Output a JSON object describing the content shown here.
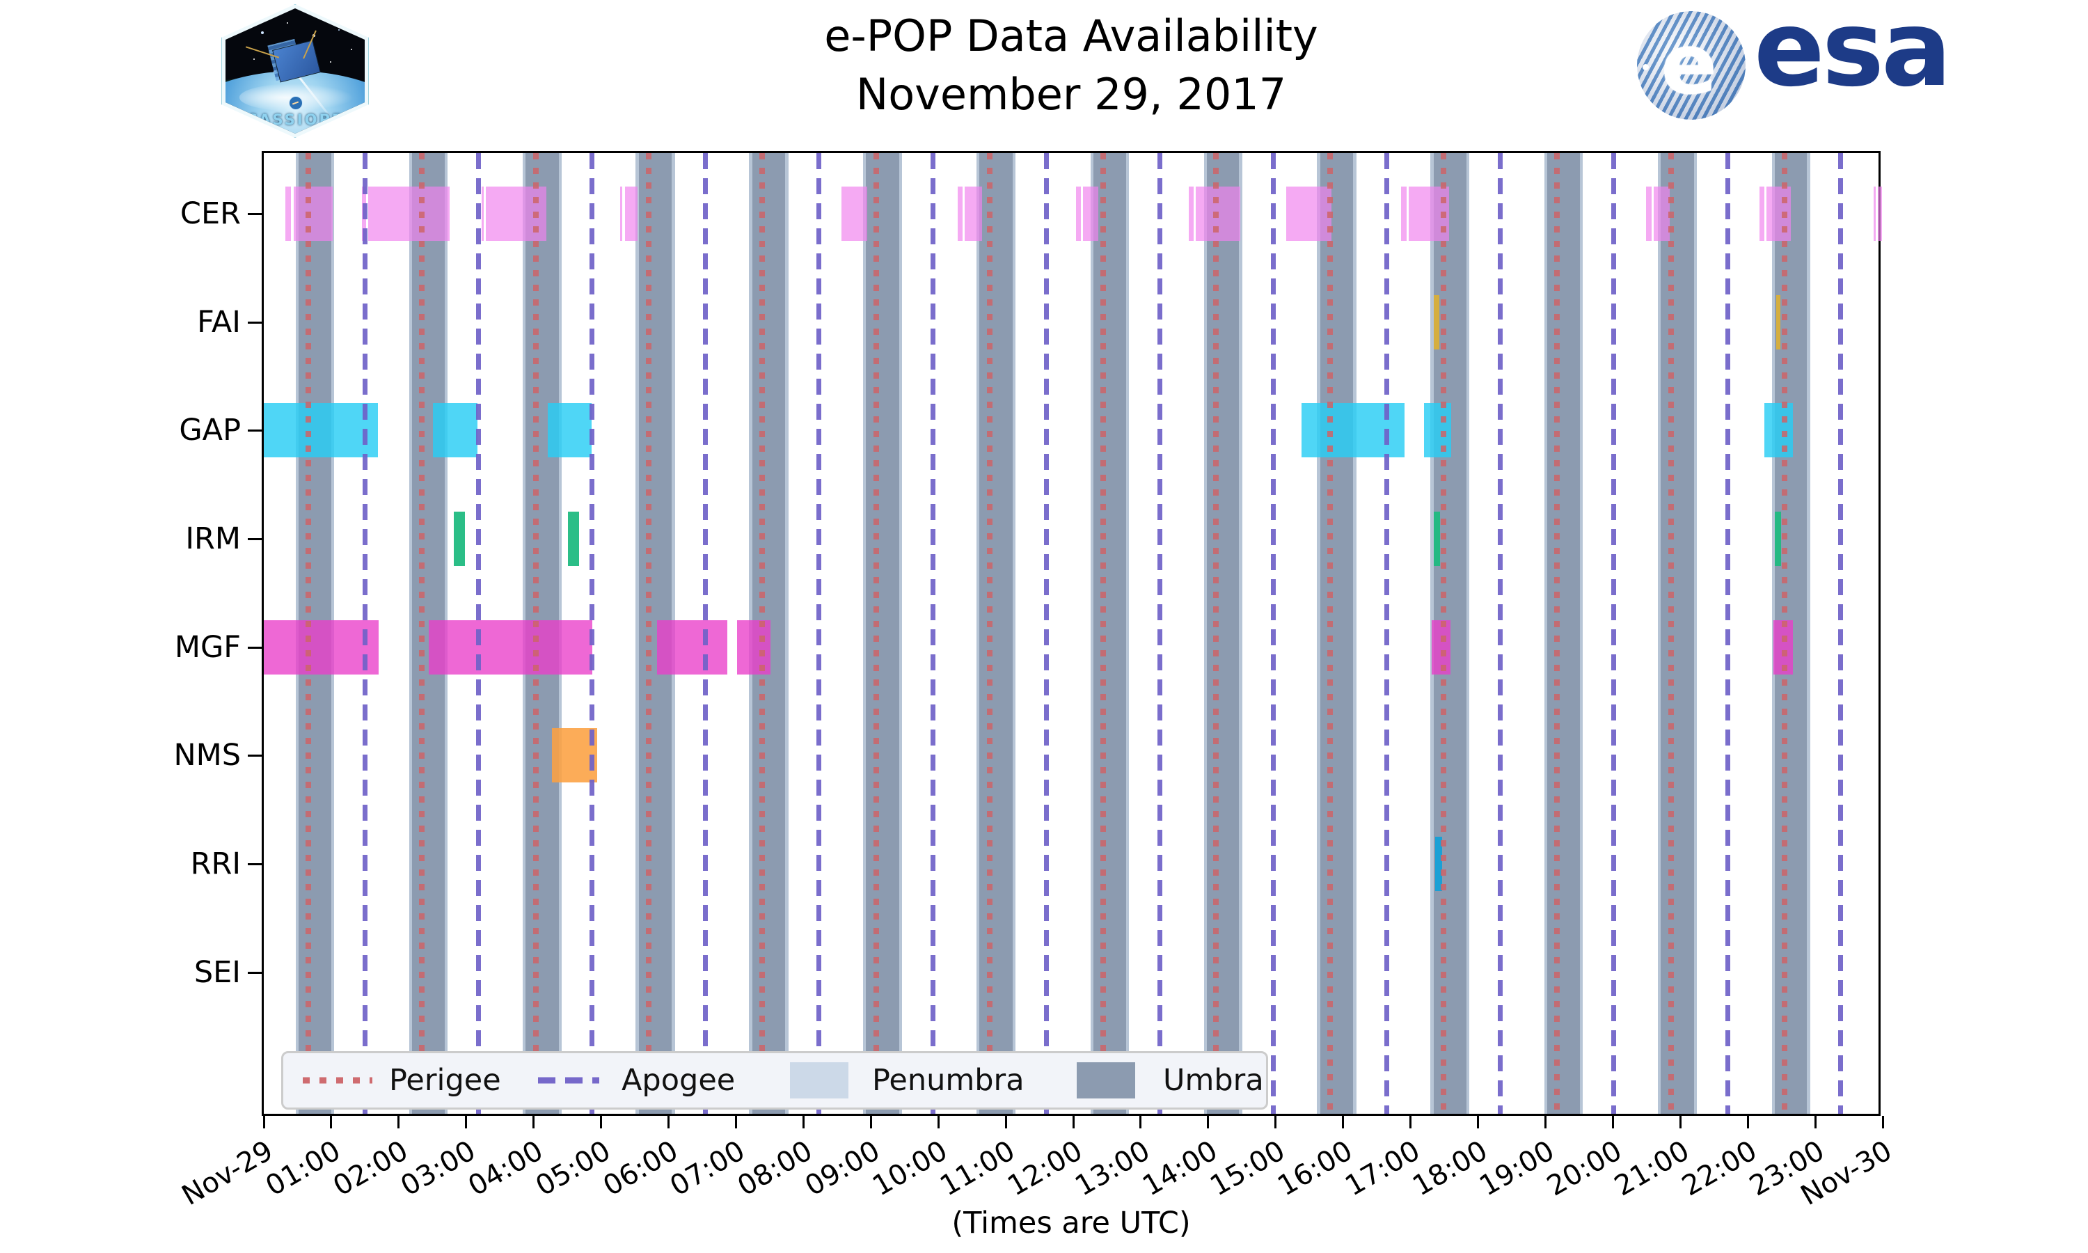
{
  "title": {
    "line1": "e-POP Data Availability",
    "line2": "November 29, 2017"
  },
  "branding": {
    "cassiope_label": "CASSIOPE",
    "esa_wordmark": "esa",
    "esa_globe_letter": "e"
  },
  "axis": {
    "x_axis_note": "(Times are UTC)"
  },
  "legend": {
    "items": [
      {
        "label": "Perigee",
        "swatch": "red-dotted-line"
      },
      {
        "label": "Apogee",
        "swatch": "purple-dashed-line"
      },
      {
        "label": "Penumbra",
        "swatch": "light-blue-patch",
        "color": "#ccd9e8"
      },
      {
        "label": "Umbra",
        "swatch": "slate-gray-patch",
        "color": "#8c9bb0"
      }
    ]
  },
  "chart_data": {
    "type": "broken-horizontal-bar availability timeline",
    "x_unit": "hours UTC on 2017-11-29",
    "x_range_hours": [
      0,
      24
    ],
    "x_tick_labels": [
      "Nov-29",
      "01:00",
      "02:00",
      "03:00",
      "04:00",
      "05:00",
      "06:00",
      "07:00",
      "08:00",
      "09:00",
      "10:00",
      "11:00",
      "12:00",
      "13:00",
      "14:00",
      "15:00",
      "16:00",
      "17:00",
      "18:00",
      "19:00",
      "20:00",
      "21:00",
      "22:00",
      "23:00",
      "Nov-30"
    ],
    "grid": false,
    "legend_position": "bottom-left inside axes",
    "colors": {
      "umbra": "#8c9bb0",
      "penumbra": "#b7c5d6",
      "perigee_line": "#cd6468",
      "apogee_line": "#6f61c8"
    },
    "orbit": {
      "perigee_hours": [
        0.66,
        2.34,
        4.03,
        5.71,
        7.39,
        9.08,
        10.76,
        12.44,
        14.12,
        15.81,
        17.49,
        19.17,
        20.86,
        22.54
      ],
      "apogee_hours": [
        1.5,
        3.18,
        4.87,
        6.55,
        8.23,
        9.92,
        11.6,
        13.28,
        14.97,
        16.65,
        18.33,
        20.01,
        21.7,
        23.38
      ],
      "umbra_intervals_hours": [
        [
          0.52,
          1.0
        ],
        [
          2.2,
          2.68
        ],
        [
          3.88,
          4.37
        ],
        [
          5.56,
          6.05
        ],
        [
          7.24,
          7.73
        ],
        [
          8.93,
          9.42
        ],
        [
          10.61,
          11.1
        ],
        [
          12.3,
          12.78
        ],
        [
          13.98,
          14.46
        ],
        [
          15.66,
          16.15
        ],
        [
          17.34,
          17.83
        ],
        [
          19.03,
          19.51
        ],
        [
          20.71,
          21.2
        ],
        [
          22.4,
          22.88
        ]
      ],
      "penumbra_width_hours": 0.045
    },
    "series": [
      {
        "name": "CER",
        "color": "rgba(240,130,238,0.68)",
        "intervals": [
          [
            0.32,
            0.4
          ],
          [
            0.44,
            1.02
          ],
          [
            1.46,
            1.52
          ],
          [
            1.55,
            2.76
          ],
          [
            3.23,
            3.26
          ],
          [
            3.29,
            4.19
          ],
          [
            5.28,
            5.31
          ],
          [
            5.35,
            5.54
          ],
          [
            8.56,
            8.95
          ],
          [
            10.29,
            10.36
          ],
          [
            10.39,
            10.65
          ],
          [
            12.04,
            12.11
          ],
          [
            12.14,
            12.37
          ],
          [
            13.71,
            13.78
          ],
          [
            13.82,
            14.48
          ],
          [
            15.16,
            15.83
          ],
          [
            16.86,
            16.94
          ],
          [
            16.97,
            17.57
          ],
          [
            20.49,
            20.57
          ],
          [
            20.61,
            20.84
          ],
          [
            22.17,
            22.25
          ],
          [
            22.28,
            22.64
          ],
          [
            23.87,
            23.9
          ],
          [
            23.93,
            23.99
          ]
        ]
      },
      {
        "name": "FAI",
        "color": "rgba(223,176,48,0.88)",
        "intervals": [
          [
            17.34,
            17.43
          ],
          [
            22.42,
            22.48
          ]
        ]
      },
      {
        "name": "GAP",
        "color": "rgba(40,205,244,0.82)",
        "intervals": [
          [
            0.0,
            1.69
          ],
          [
            2.51,
            3.17
          ],
          [
            4.21,
            4.86
          ],
          [
            15.38,
            16.91
          ],
          [
            17.2,
            17.6
          ],
          [
            22.25,
            22.67
          ]
        ]
      },
      {
        "name": "IRM",
        "color": "rgba(32,186,129,0.95)",
        "intervals": [
          [
            2.82,
            2.98
          ],
          [
            4.51,
            4.67
          ],
          [
            17.34,
            17.44
          ],
          [
            22.4,
            22.49
          ]
        ]
      },
      {
        "name": "MGF",
        "color": "rgba(233,62,201,0.78)",
        "intervals": [
          [
            0.0,
            1.7
          ],
          [
            2.45,
            4.87
          ],
          [
            5.83,
            6.87
          ],
          [
            7.02,
            7.51
          ],
          [
            17.31,
            17.59
          ],
          [
            22.38,
            22.67
          ]
        ]
      },
      {
        "name": "NMS",
        "color": "rgba(252,160,65,0.88)",
        "intervals": [
          [
            4.27,
            4.94
          ]
        ]
      },
      {
        "name": "RRI",
        "color": "rgba(20,160,215,0.95)",
        "intervals": [
          [
            17.37,
            17.47
          ]
        ]
      },
      {
        "name": "SEI",
        "color": "rgba(150,150,150,0.9)",
        "intervals": []
      }
    ]
  }
}
